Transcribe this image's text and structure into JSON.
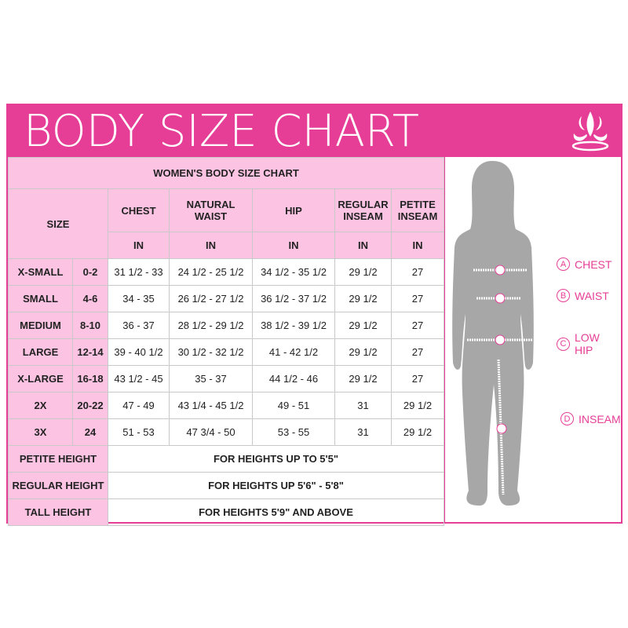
{
  "title": "BODY SIZE CHART",
  "colors": {
    "brand": "#e63e96",
    "header_fill": "#fcc4e2",
    "silhouette": "#a7a7a7"
  },
  "icons": {
    "logo": "fleur-de-lis-icon"
  },
  "table": {
    "caption": "WOMEN'S BODY SIZE CHART",
    "size_header": "SIZE",
    "columns": [
      "CHEST",
      "NATURAL WAIST",
      "HIP",
      "REGULAR INSEAM",
      "PETITE INSEAM"
    ],
    "units": [
      "IN",
      "IN",
      "IN",
      "IN",
      "IN"
    ],
    "rows": [
      {
        "size": "X-SMALL",
        "num": "0-2",
        "values": [
          "31 1/2 - 33",
          "24 1/2 - 25 1/2",
          "34 1/2 - 35 1/2",
          "29 1/2",
          "27"
        ]
      },
      {
        "size": "SMALL",
        "num": "4-6",
        "values": [
          "34 - 35",
          "26 1/2 - 27 1/2",
          "36 1/2 - 37 1/2",
          "29 1/2",
          "27"
        ]
      },
      {
        "size": "MEDIUM",
        "num": "8-10",
        "values": [
          "36 - 37",
          "28 1/2 - 29 1/2",
          "38 1/2 - 39 1/2",
          "29 1/2",
          "27"
        ]
      },
      {
        "size": "LARGE",
        "num": "12-14",
        "values": [
          "39 - 40 1/2",
          "30 1/2 - 32 1/2",
          "41 - 42 1/2",
          "29 1/2",
          "27"
        ]
      },
      {
        "size": "X-LARGE",
        "num": "16-18",
        "values": [
          "43 1/2 - 45",
          "35 - 37",
          "44 1/2 - 46",
          "29 1/2",
          "27"
        ]
      },
      {
        "size": "2X",
        "num": "20-22",
        "values": [
          "47 - 49",
          "43 1/4 - 45 1/2",
          "49 - 51",
          "31",
          "29 1/2"
        ]
      },
      {
        "size": "3X",
        "num": "24",
        "values": [
          "51 - 53",
          "47 3/4 - 50",
          "53 - 55",
          "31",
          "29 1/2"
        ]
      }
    ],
    "heights": [
      {
        "label": "PETITE HEIGHT",
        "value": "FOR  HEIGHTS UP TO 5'5\""
      },
      {
        "label": "REGULAR HEIGHT",
        "value": "FOR HEIGHTS UP 5'6\" - 5'8\""
      },
      {
        "label": "TALL HEIGHT",
        "value": "FOR HEIGHTS 5'9\" AND ABOVE"
      }
    ]
  },
  "figure": {
    "markers": [
      {
        "letter": "A",
        "label": "CHEST"
      },
      {
        "letter": "B",
        "label": "WAIST"
      },
      {
        "letter": "C",
        "label": "LOW HIP"
      },
      {
        "letter": "D",
        "label": "INSEAM"
      }
    ]
  }
}
